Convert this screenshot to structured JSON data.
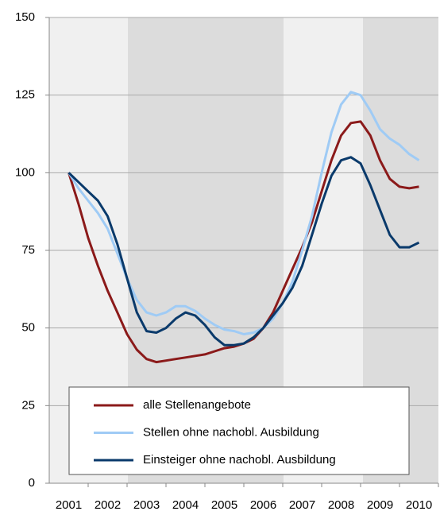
{
  "chart_data": {
    "type": "line",
    "x": [
      2001,
      2001.25,
      2001.5,
      2001.75,
      2002,
      2002.25,
      2002.5,
      2002.75,
      2003,
      2003.25,
      2003.5,
      2003.75,
      2004,
      2004.25,
      2004.5,
      2004.75,
      2005,
      2005.25,
      2005.5,
      2005.75,
      2006,
      2006.25,
      2006.5,
      2006.75,
      2007,
      2007.25,
      2007.5,
      2007.75,
      2008,
      2008.25,
      2008.5,
      2008.75,
      2009,
      2009.25,
      2009.5,
      2009.75,
      2010
    ],
    "series": [
      {
        "name": "alle Stellenangebote",
        "color": "#8b1a1a",
        "values": [
          100,
          90,
          79,
          70,
          62,
          55,
          48,
          43,
          40,
          39,
          39.5,
          40,
          40.5,
          41,
          41.5,
          42.5,
          43.5,
          44,
          45,
          46.5,
          50,
          55,
          62,
          69,
          76,
          84,
          94,
          104,
          112,
          116,
          116.5,
          112,
          104,
          98,
          95.5,
          95,
          95.5
        ]
      },
      {
        "name": "Stellen ohne nachobl. Ausbildung",
        "color": "#9fcbf5",
        "values": [
          100,
          95,
          91,
          87,
          82,
          74,
          66,
          59,
          55,
          54,
          55,
          57,
          57,
          55.5,
          53,
          51,
          49.5,
          49,
          48,
          48.5,
          50,
          53,
          58,
          65,
          75,
          86,
          100,
          113,
          122,
          126,
          125,
          120,
          114,
          111,
          109,
          106,
          104
        ]
      },
      {
        "name": "Einsteiger ohne nachobl. Ausbildung",
        "color": "#0a3a6b",
        "values": [
          100,
          97,
          94,
          91,
          86,
          77,
          66,
          55,
          49,
          48.5,
          50,
          53,
          55,
          54,
          51,
          47,
          44.5,
          44.5,
          45,
          47,
          50,
          54,
          58,
          63,
          70,
          80,
          90,
          99,
          104,
          105,
          103,
          96,
          88,
          80,
          76,
          76,
          77.5
        ]
      }
    ],
    "xlim": [
      2000.5,
      2010.5
    ],
    "xticks": [
      2001,
      2002,
      2003,
      2004,
      2005,
      2006,
      2007,
      2008,
      2009,
      2010
    ],
    "ylim": [
      0,
      150
    ],
    "yticks": [
      0,
      25,
      50,
      75,
      100,
      125,
      150
    ],
    "grid": true
  }
}
